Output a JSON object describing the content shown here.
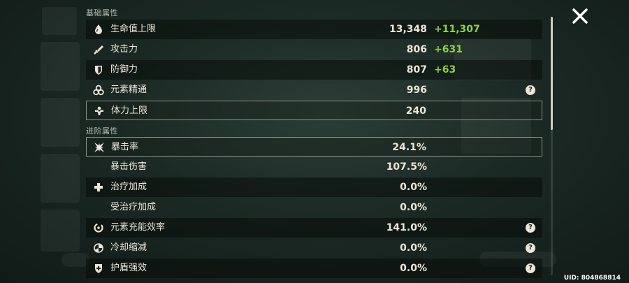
{
  "sections": {
    "base": {
      "title": "基础属性"
    },
    "advanced": {
      "title": "进阶属性"
    }
  },
  "stats": [
    {
      "label": "生命值上限",
      "value": "13,348",
      "bonus": "+11,307",
      "icon": "hp-drop-icon",
      "help": false
    },
    {
      "label": "攻击力",
      "value": "806",
      "bonus": "+631",
      "icon": "sword-icon",
      "help": false
    },
    {
      "label": "防御力",
      "value": "807",
      "bonus": "+63",
      "icon": "shield-icon",
      "help": false
    },
    {
      "label": "元素精通",
      "value": "996",
      "bonus": "",
      "icon": "elemental-mastery-icon",
      "help": true
    },
    {
      "label": "体力上限",
      "value": "240",
      "bonus": "",
      "icon": "stamina-icon",
      "help": false
    },
    {
      "label": "暴击率",
      "value": "24.1%",
      "bonus": "",
      "icon": "crit-rate-icon",
      "help": false
    },
    {
      "label": "暴击伤害",
      "value": "107.5%",
      "bonus": "",
      "icon": "",
      "help": false
    },
    {
      "label": "治疗加成",
      "value": "0.0%",
      "bonus": "",
      "icon": "healing-cross-icon",
      "help": false
    },
    {
      "label": "受治疗加成",
      "value": "0.0%",
      "bonus": "",
      "icon": "",
      "help": false
    },
    {
      "label": "元素充能效率",
      "value": "141.0%",
      "bonus": "",
      "icon": "energy-recharge-icon",
      "help": true
    },
    {
      "label": "冷却缩减",
      "value": "0.0%",
      "bonus": "",
      "icon": "cooldown-icon",
      "help": true
    },
    {
      "label": "护盾强效",
      "value": "0.0%",
      "bonus": "",
      "icon": "shield-strength-icon",
      "help": true
    }
  ],
  "help_glyph": "?",
  "uid": "UID: 804868814",
  "colors": {
    "bonus": "#8fd14a",
    "text": "#ece5d8",
    "row_shade": "rgba(8,12,10,0.55)"
  }
}
